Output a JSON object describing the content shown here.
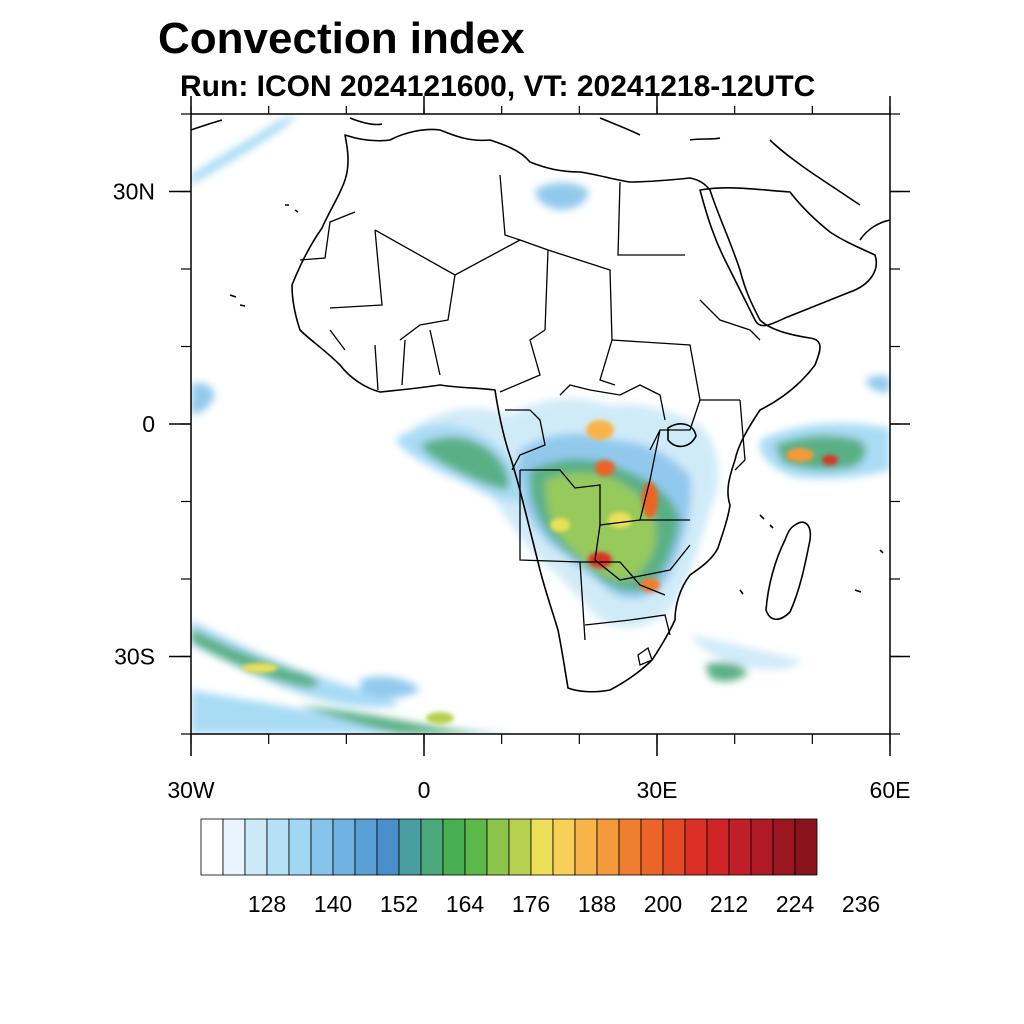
{
  "title": "Convection index",
  "subtitle": "Run: ICON 2024121600,  VT: 20241218-12UTC",
  "map": {
    "lon_range": [
      -30,
      60
    ],
    "lat_range": [
      -40,
      40
    ],
    "lat_ticks": [
      {
        "value": 30,
        "label": "30N"
      },
      {
        "value": 0,
        "label": "0"
      },
      {
        "value": -30,
        "label": "30S"
      }
    ],
    "lon_ticks": [
      {
        "value": -30,
        "label": "30W"
      },
      {
        "value": 0,
        "label": "0"
      },
      {
        "value": 30,
        "label": "30E"
      },
      {
        "value": 60,
        "label": "60E"
      }
    ]
  },
  "colorbar": {
    "labels": [
      "128",
      "140",
      "152",
      "164",
      "176",
      "188",
      "200",
      "212",
      "224",
      "236"
    ],
    "colors": [
      "#ffffff",
      "#e8f5fc",
      "#cce9f8",
      "#b6e0f6",
      "#a0d8f4",
      "#86c4ec",
      "#6fb2e4",
      "#5a9ed6",
      "#4a8fcc",
      "#4a9ea0",
      "#4aa87a",
      "#48b050",
      "#5cb848",
      "#8cc44c",
      "#b8d050",
      "#ece05a",
      "#f8d058",
      "#f8b448",
      "#f49a3a",
      "#f07e30",
      "#ec6428",
      "#e44a26",
      "#dc3026",
      "#d02428",
      "#c01e28",
      "#b01a24",
      "#9a1620",
      "#8a141c"
    ]
  }
}
